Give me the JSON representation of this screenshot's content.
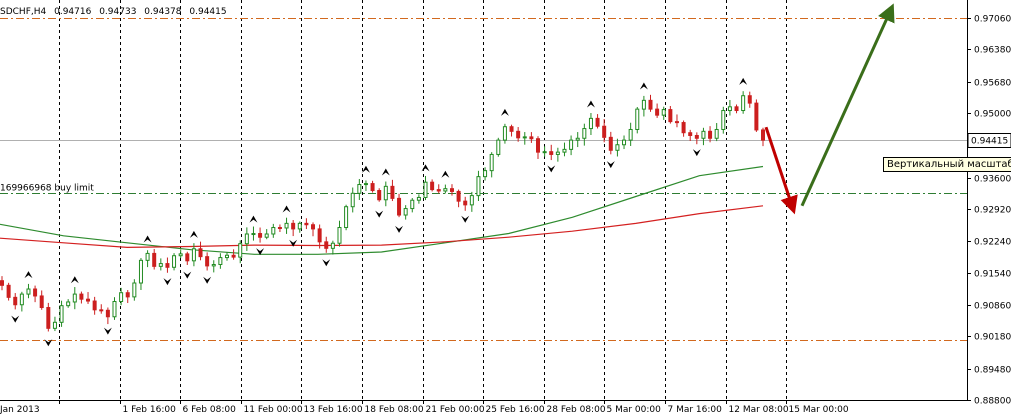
{
  "window": {
    "symbol_line": "SDCHF,H4",
    "ohlc": [
      "0.94716",
      "0.94733",
      "0.94378",
      "0.94415"
    ]
  },
  "tooltip_text": "Вертикальный масштаб",
  "chart_data": {
    "type": "candlestick",
    "title": "SDCHF,H4  0.94716 0.94733 0.94378 0.94415",
    "price_axis": {
      "ticks": [
        "0.97060",
        "0.96380",
        "0.95680",
        "0.95000",
        "0.94415",
        "0.93600",
        "0.92920",
        "0.92240",
        "0.91540",
        "0.90860",
        "0.90180",
        "0.89480",
        "0.88800"
      ],
      "range": [
        0.888,
        0.9745
      ],
      "current_price": "0.94415"
    },
    "time_axis": {
      "labels": [
        "Jan 2013",
        "1 Feb 16:00",
        "6 Feb 08:00",
        "11 Feb 00:00",
        "13 Feb 16:00",
        "18 Feb 08:00",
        "21 Feb 00:00",
        "25 Feb 16:00",
        "28 Feb 08:00",
        "5 Mar 00:00",
        "7 Mar 16:00",
        "12 Mar 08:00",
        "15 Mar 00:00"
      ]
    },
    "grid": true,
    "levels": [
      {
        "name": "upper-level",
        "value": 0.9706,
        "style": "dash-dot",
        "color": "#d2691e"
      },
      {
        "name": "order-level",
        "value": 0.9327,
        "style": "dash-dot",
        "color": "#2e7d32",
        "label": "169966968 buy limit"
      },
      {
        "name": "lower-level",
        "value": 0.9009,
        "style": "dash-dot",
        "color": "#d2691e"
      }
    ],
    "moving_averages": [
      {
        "color": "#2e8b2e",
        "values": [
          0.926,
          0.9235,
          0.922,
          0.9205,
          0.9195,
          0.9195,
          0.92,
          0.922,
          0.924,
          0.9275,
          0.932,
          0.9365,
          0.9385
        ]
      },
      {
        "color": "#d42020",
        "values": [
          0.923,
          0.922,
          0.921,
          0.9212,
          0.9215,
          0.9214,
          0.9215,
          0.9222,
          0.9232,
          0.9245,
          0.9262,
          0.9283,
          0.93
        ]
      }
    ],
    "closes": [
      0.9128,
      0.9102,
      0.9086,
      0.9109,
      0.912,
      0.9105,
      0.908,
      0.9035,
      0.9048,
      0.9084,
      0.9092,
      0.9109,
      0.9098,
      0.9094,
      0.9075,
      0.9074,
      0.906,
      0.9093,
      0.9112,
      0.9103,
      0.9133,
      0.9182,
      0.9197,
      0.9169,
      0.9175,
      0.9167,
      0.9192,
      0.9196,
      0.9181,
      0.9207,
      0.919,
      0.917,
      0.9173,
      0.9188,
      0.9193,
      0.9189,
      0.9218,
      0.9239,
      0.924,
      0.9232,
      0.9239,
      0.9253,
      0.9252,
      0.9262,
      0.925,
      0.9262,
      0.9259,
      0.925,
      0.9222,
      0.9208,
      0.9219,
      0.9253,
      0.9298,
      0.9327,
      0.9346,
      0.9348,
      0.9333,
      0.9313,
      0.9342,
      0.9316,
      0.928,
      0.9294,
      0.9312,
      0.9318,
      0.9351,
      0.9335,
      0.9332,
      0.9337,
      0.9331,
      0.931,
      0.9302,
      0.9322,
      0.9363,
      0.9376,
      0.9411,
      0.9442,
      0.9471,
      0.9461,
      0.9447,
      0.9449,
      0.9445,
      0.9416,
      0.9417,
      0.9411,
      0.9416,
      0.9422,
      0.9442,
      0.9446,
      0.9467,
      0.9489,
      0.9472,
      0.9448,
      0.942,
      0.9432,
      0.9442,
      0.9465,
      0.9509,
      0.9528,
      0.9509,
      0.9496,
      0.9508,
      0.9482,
      0.948,
      0.9458,
      0.9452,
      0.9446,
      0.9461,
      0.9446,
      0.9465,
      0.9506,
      0.9514,
      0.9506,
      0.9538,
      0.9522,
      0.9464,
      0.9442
    ],
    "fractal_markers": "up and down arrow markers above/below swing highs and lows",
    "arrows": [
      {
        "name": "down-arrow",
        "color": "#c00000",
        "from": [
          0.947
        ],
        "to": [
          0.93
        ]
      },
      {
        "name": "up-arrow",
        "color": "#3a6e1a",
        "from": [
          0.93
        ],
        "to": [
          0.972
        ]
      }
    ]
  }
}
